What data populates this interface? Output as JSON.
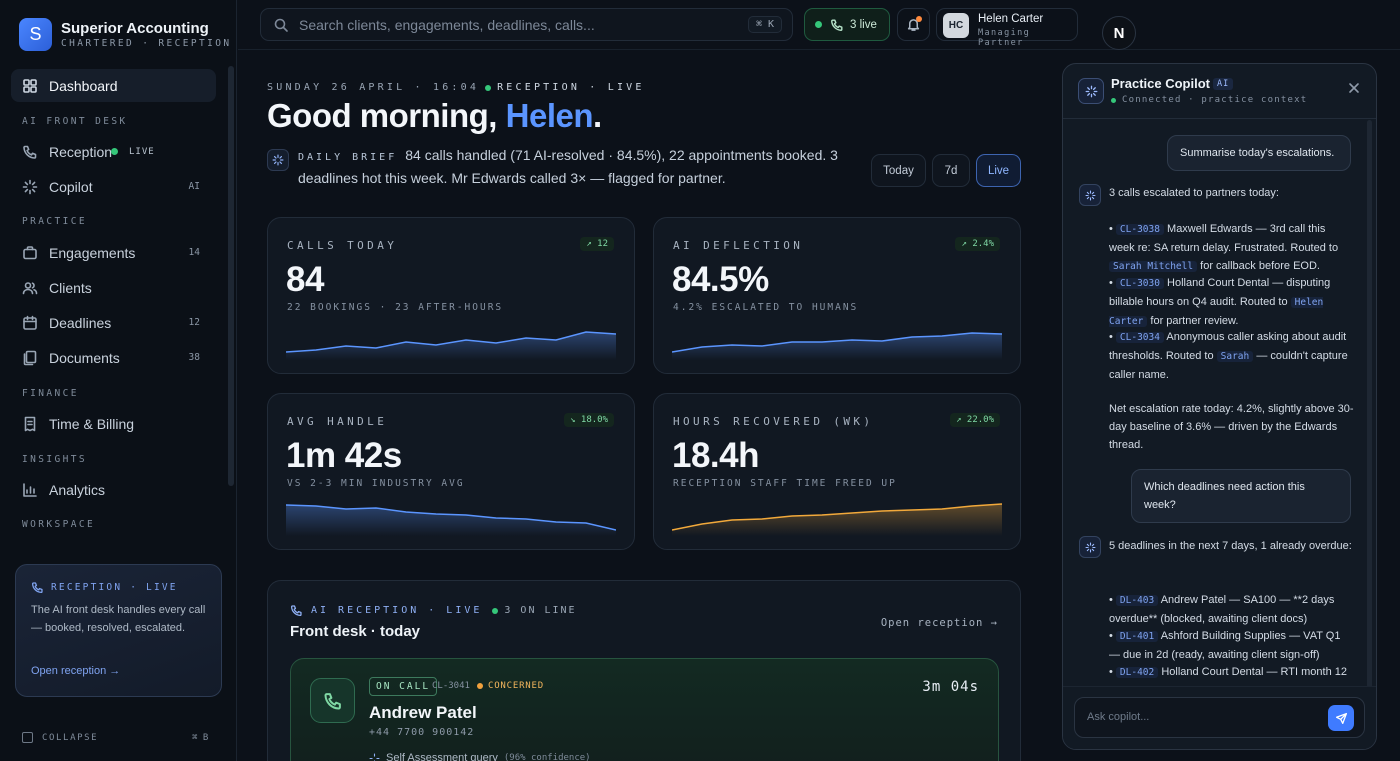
{
  "brand": {
    "initial": "S",
    "name": "Superior Accounting",
    "subtitle": "CHARTERED · RECEPTION"
  },
  "nav": {
    "dashboard": "Dashboard",
    "sec_front": "AI FRONT DESK",
    "reception": "Reception",
    "reception_live": "LIVE",
    "copilot": "Copilot",
    "copilot_badge": "AI",
    "sec_practice": "PRACTICE",
    "engagements": "Engagements",
    "engagements_count": "14",
    "clients": "Clients",
    "deadlines": "Deadlines",
    "deadlines_count": "12",
    "documents": "Documents",
    "documents_count": "38",
    "sec_finance": "FINANCE",
    "time_billing": "Time & Billing",
    "sec_insights": "INSIGHTS",
    "analytics": "Analytics",
    "sec_workspace": "WORKSPACE"
  },
  "reception_card": {
    "header": "RECEPTION · LIVE",
    "text": "The AI front desk handles every call — booked, resolved, escalated.",
    "link": "Open reception →"
  },
  "collapse": {
    "label": "COLLAPSE",
    "kbd": "⌘ B"
  },
  "topbar": {
    "search_placeholder": "Search clients, engagements, deadlines, calls...",
    "search_kbd": "⌘ K",
    "live_calls": "3 live",
    "user": {
      "initials": "HC",
      "name": "Helen Carter",
      "role": "Managing Partner"
    },
    "avatar_letter": "N"
  },
  "hero": {
    "datebar": "SUNDAY 26 APRIL · 16:04",
    "datebar_live": "RECEPTION · LIVE",
    "greeting": "Good morning,",
    "greeting_name": "Helen",
    "greeting_end": ".",
    "brief_tag": "DAILY BRIEF",
    "brief_text": "84 calls handled (71 AI-resolved · 84.5%), 22 appointments booked. 3 deadlines hot this week. Mr Edwards called 3× — flagged for partner."
  },
  "range": {
    "today": "Today",
    "week": "7d",
    "live": "Live"
  },
  "stats": [
    {
      "label": "CALLS TODAY",
      "delta": "↗ 12",
      "value": "84",
      "sub": "22 BOOKINGS · 23 AFTER-HOURS",
      "color": "#5b95ff"
    },
    {
      "label": "AI DEFLECTION",
      "delta": "↗ 2.4%",
      "value": "84.5%",
      "sub": "4.2% ESCALATED TO HUMANS",
      "color": "#5b95ff"
    },
    {
      "label": "AVG HANDLE",
      "delta": "↘ 18.0%",
      "value": "1m 42s",
      "sub": "VS 2-3 MIN INDUSTRY AVG",
      "color": "#5b95ff"
    },
    {
      "label": "HOURS RECOVERED (WK)",
      "delta": "↗ 22.0%",
      "value": "18.4h",
      "sub": "RECEPTION STAFF TIME FREED UP",
      "color": "#f2a93b"
    }
  ],
  "recpanel": {
    "header": "AI RECEPTION · LIVE",
    "online": "3 ON LINE",
    "title": "Front desk · today",
    "open": "Open reception →",
    "call": {
      "status": "ON CALL",
      "id": "CL-3041",
      "mood": "CONCERNED",
      "timer": "3m 04s",
      "name": "Andrew Patel",
      "phone": "+44 7700 900142",
      "topic": "Self Assessment query",
      "confidence": "(96% confidence)"
    }
  },
  "copilot": {
    "title": "Practice Copilot",
    "badge": "AI",
    "status": "Connected · practice context",
    "q1": "Summarise today's escalations.",
    "a1_intro": "3 calls escalated to partners today:",
    "a1_b1_code": "CL-3038",
    "a1_b1_text": "Maxwell Edwards — 3rd call this week re: SA return delay. Frustrated. Routed to",
    "a1_b1_code2": "Sarah Mitchell",
    "a1_b1_tail": "for callback before EOD.",
    "a1_b2_code": "CL-3030",
    "a1_b2_text": "Holland Court Dental — disputing billable hours on Q4 audit. Routed to",
    "a1_b2_code2": "Helen Carter",
    "a1_b2_tail": "for partner review.",
    "a1_b3_code": "CL-3034",
    "a1_b3_text": "Anonymous caller asking about audit thresholds. Routed to",
    "a1_b3_code2": "Sarah",
    "a1_b3_tail": "— couldn't capture caller name.",
    "a1_outro": "Net escalation rate today: 4.2%, slightly above 30-day baseline of 3.6% — driven by the Edwards thread.",
    "q2": "Which deadlines need action this week?",
    "a2_intro": "5 deadlines in the next 7 days, 1 already overdue:",
    "a2_b1_code": "DL-403",
    "a2_b1_text": "Andrew Patel — SA100 — **2 days overdue** (blocked, awaiting client docs)",
    "a2_b2_code": "DL-401",
    "a2_b2_text": "Ashford Building Supplies — VAT Q1 — due in 2d (ready, awaiting client sign-off)",
    "a2_b3_code": "DL-402",
    "a2_b3_text": "Holland Court Dental — RTI month 12",
    "ask_placeholder": "Ask copilot..."
  },
  "colors": {
    "accent": "#5b95ff",
    "live": "#35c77a",
    "orange": "#f2a93b"
  }
}
